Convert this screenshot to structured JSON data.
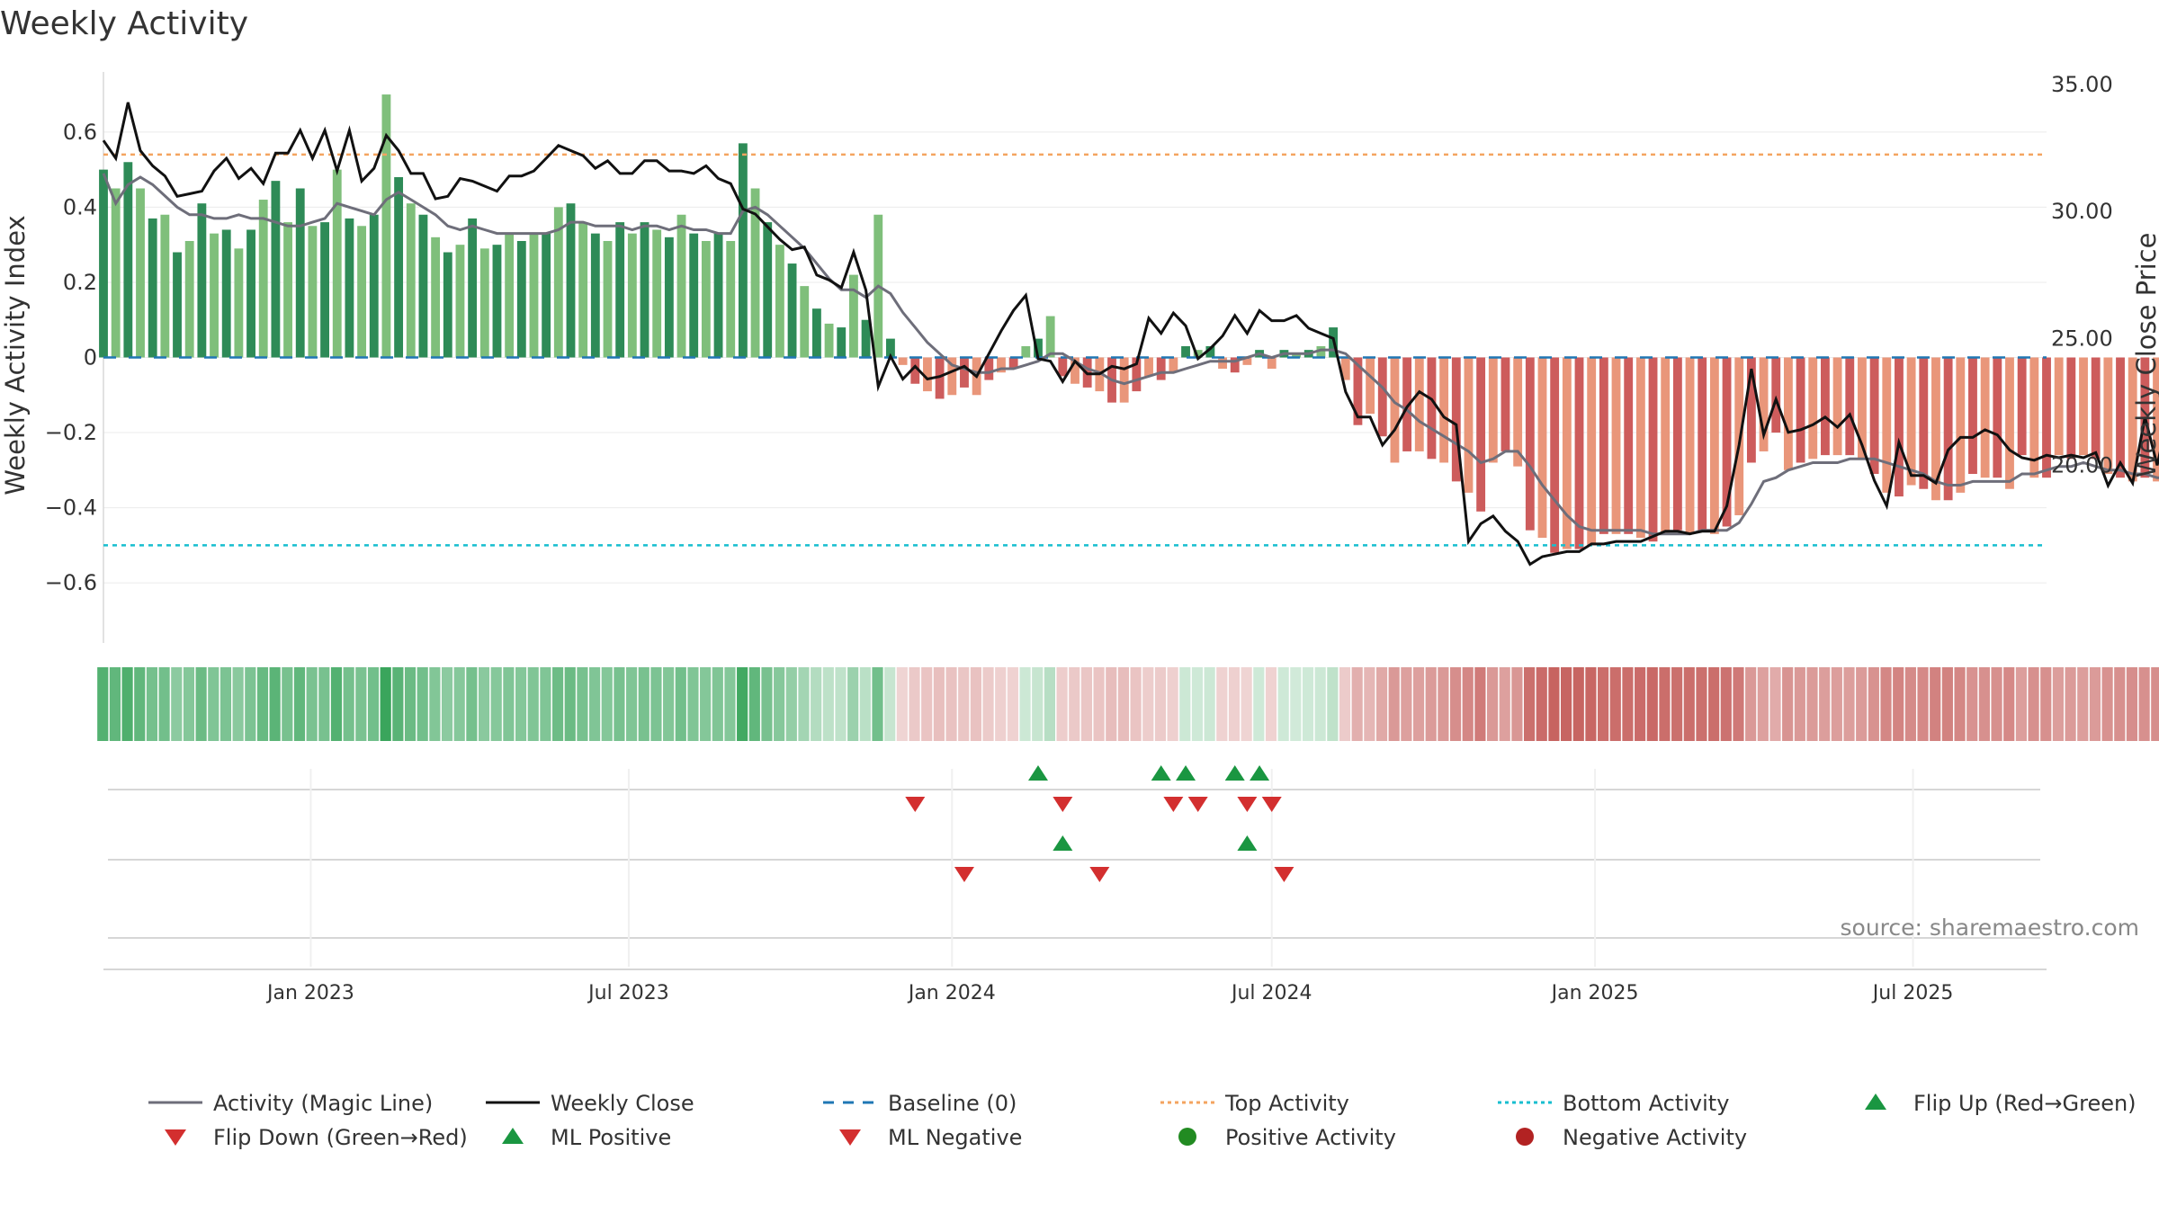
{
  "title": "Weekly Activity",
  "source_text": "source: sharemaestro.com",
  "colors": {
    "pos_dark": "#2e8b57",
    "pos_light": "#7fbf7b",
    "neg_dark": "#cd5c5c",
    "neg_light": "#e9967a",
    "magic_line": "#6e6e7a",
    "close_line": "#111111",
    "baseline": "#1f77b4",
    "top_line": "#f4a460",
    "bottom_line": "#17becf",
    "flip_up": "#1a9641",
    "flip_down": "#d32f2f",
    "pos_dot": "#228b22",
    "neg_dot": "#b22222"
  },
  "legend": [
    {
      "label": "Activity (Magic Line)",
      "kind": "line",
      "color": "#6e6e7a"
    },
    {
      "label": "Weekly Close",
      "kind": "line",
      "color": "#111111"
    },
    {
      "label": "Baseline (0)",
      "kind": "dashed",
      "color": "#1f77b4"
    },
    {
      "label": "Top Activity",
      "kind": "dotted",
      "color": "#f4a460"
    },
    {
      "label": "Bottom Activity",
      "kind": "dotted",
      "color": "#17becf"
    },
    {
      "label": "Flip Up (Red→Green)",
      "kind": "up",
      "color": "#1a9641"
    },
    {
      "label": "Flip Down (Green→Red)",
      "kind": "down",
      "color": "#d32f2f"
    },
    {
      "label": "ML Positive",
      "kind": "up",
      "color": "#1a9641"
    },
    {
      "label": "ML Negative",
      "kind": "down",
      "color": "#d32f2f"
    },
    {
      "label": "Positive Activity",
      "kind": "dot",
      "color": "#228b22"
    },
    {
      "label": "Negative Activity",
      "kind": "dot",
      "color": "#b22222"
    }
  ],
  "chart_data": {
    "type": "bar",
    "title": "Weekly Activity",
    "ylabel_left": "Weekly Activity Index",
    "ylabel_right": "Weekly Close Price",
    "x_range": [
      "2022-09-05",
      "2025-09-15"
    ],
    "ylim_left": [
      -0.76,
      0.76
    ],
    "ylim_right": [
      13.0,
      35.5
    ],
    "yticks_left": [
      {
        "v": 0.6,
        "label": "0.6"
      },
      {
        "v": 0.4,
        "label": "0.4"
      },
      {
        "v": 0.2,
        "label": "0.2"
      },
      {
        "v": 0,
        "label": "0"
      },
      {
        "v": -0.2,
        "label": "−0.2"
      },
      {
        "v": -0.4,
        "label": "−0.4"
      },
      {
        "v": -0.6,
        "label": "−0.6"
      }
    ],
    "yticks_right": [
      {
        "v": 35,
        "label": "35.00"
      },
      {
        "v": 30,
        "label": "30.00"
      },
      {
        "v": 25,
        "label": "25.00"
      },
      {
        "v": 20,
        "label": "20.00"
      }
    ],
    "xticks": [
      {
        "date": "2023-01-01",
        "label": "Jan 2023"
      },
      {
        "date": "2023-07-01",
        "label": "Jul 2023"
      },
      {
        "date": "2024-01-01",
        "label": "Jan 2024"
      },
      {
        "date": "2024-07-01",
        "label": "Jul 2024"
      },
      {
        "date": "2025-01-01",
        "label": "Jan 2025"
      },
      {
        "date": "2025-07-01",
        "label": "Jul 2025"
      }
    ],
    "top_activity": 0.54,
    "bottom_activity": -0.5,
    "baseline": 0,
    "start_date": "2022-09-05",
    "week_step_days": 7,
    "activity": [
      0.5,
      0.45,
      0.52,
      0.45,
      0.37,
      0.38,
      0.28,
      0.31,
      0.41,
      0.33,
      0.34,
      0.29,
      0.34,
      0.42,
      0.47,
      0.36,
      0.45,
      0.35,
      0.36,
      0.5,
      0.37,
      0.35,
      0.38,
      0.7,
      0.48,
      0.41,
      0.38,
      0.32,
      0.28,
      0.3,
      0.37,
      0.29,
      0.3,
      0.33,
      0.31,
      0.33,
      0.33,
      0.4,
      0.41,
      0.36,
      0.33,
      0.31,
      0.36,
      0.33,
      0.36,
      0.34,
      0.32,
      0.38,
      0.33,
      0.31,
      0.33,
      0.31,
      0.57,
      0.45,
      0.36,
      0.3,
      0.25,
      0.19,
      0.13,
      0.09,
      0.08,
      0.22,
      0.1,
      0.38,
      0.05,
      -0.02,
      -0.07,
      -0.09,
      -0.11,
      -0.1,
      -0.08,
      -0.1,
      -0.06,
      -0.04,
      -0.03,
      0.03,
      0.05,
      0.11,
      -0.05,
      -0.07,
      -0.08,
      -0.09,
      -0.12,
      -0.12,
      -0.09,
      -0.05,
      -0.06,
      -0.04,
      0.03,
      0.02,
      0.03,
      -0.03,
      -0.04,
      -0.02,
      0.02,
      -0.03,
      0.02,
      0.01,
      0.02,
      0.03,
      0.08,
      -0.06,
      -0.18,
      -0.15,
      -0.21,
      -0.28,
      -0.25,
      -0.25,
      -0.27,
      -0.28,
      -0.33,
      -0.36,
      -0.41,
      -0.28,
      -0.25,
      -0.29,
      -0.46,
      -0.48,
      -0.52,
      -0.51,
      -0.51,
      -0.5,
      -0.47,
      -0.47,
      -0.47,
      -0.48,
      -0.49,
      -0.47,
      -0.46,
      -0.47,
      -0.46,
      -0.47,
      -0.45,
      -0.42,
      -0.28,
      -0.25,
      -0.2,
      -0.3,
      -0.28,
      -0.27,
      -0.26,
      -0.26,
      -0.26,
      -0.27,
      -0.31,
      -0.36,
      -0.37,
      -0.34,
      -0.35,
      -0.38,
      -0.38,
      -0.36,
      -0.31,
      -0.32,
      -0.32,
      -0.35,
      -0.26,
      -0.32,
      -0.32,
      -0.26,
      -0.27,
      -0.26,
      -0.27,
      -0.31,
      -0.32,
      -0.33,
      -0.32,
      -0.33,
      -0.33,
      -0.34,
      -0.32,
      -0.37,
      -0.33,
      -0.35,
      -0.3,
      -0.32,
      -0.22
    ],
    "magic_line": [
      0.49,
      0.41,
      0.46,
      0.48,
      0.46,
      0.43,
      0.4,
      0.38,
      0.38,
      0.37,
      0.37,
      0.38,
      0.37,
      0.37,
      0.36,
      0.35,
      0.35,
      0.36,
      0.37,
      0.41,
      0.4,
      0.39,
      0.38,
      0.42,
      0.44,
      0.42,
      0.4,
      0.38,
      0.35,
      0.34,
      0.35,
      0.34,
      0.33,
      0.33,
      0.33,
      0.33,
      0.33,
      0.34,
      0.36,
      0.36,
      0.35,
      0.35,
      0.35,
      0.34,
      0.35,
      0.35,
      0.34,
      0.35,
      0.34,
      0.34,
      0.33,
      0.33,
      0.39,
      0.4,
      0.38,
      0.35,
      0.32,
      0.29,
      0.25,
      0.21,
      0.18,
      0.18,
      0.16,
      0.19,
      0.17,
      0.12,
      0.08,
      0.04,
      0.01,
      -0.02,
      -0.03,
      -0.04,
      -0.04,
      -0.03,
      -0.03,
      -0.02,
      -0.01,
      0.01,
      0.01,
      -0.01,
      -0.03,
      -0.04,
      -0.06,
      -0.07,
      -0.06,
      -0.05,
      -0.04,
      -0.04,
      -0.03,
      -0.02,
      -0.01,
      -0.01,
      -0.01,
      0,
      0.01,
      0,
      0.01,
      0.01,
      0.01,
      0.02,
      0.02,
      0.01,
      -0.02,
      -0.05,
      -0.08,
      -0.12,
      -0.14,
      -0.17,
      -0.19,
      -0.21,
      -0.23,
      -0.25,
      -0.28,
      -0.27,
      -0.25,
      -0.25,
      -0.29,
      -0.34,
      -0.38,
      -0.42,
      -0.45,
      -0.46,
      -0.46,
      -0.46,
      -0.46,
      -0.46,
      -0.47,
      -0.47,
      -0.47,
      -0.47,
      -0.46,
      -0.46,
      -0.46,
      -0.44,
      -0.39,
      -0.33,
      -0.32,
      -0.3,
      -0.29,
      -0.28,
      -0.28,
      -0.28,
      -0.27,
      -0.27,
      -0.27,
      -0.28,
      -0.29,
      -0.3,
      -0.31,
      -0.33,
      -0.34,
      -0.34,
      -0.33,
      -0.33,
      -0.33,
      -0.33,
      -0.31,
      -0.31,
      -0.3,
      -0.29,
      -0.29,
      -0.28,
      -0.29,
      -0.3,
      -0.3,
      -0.31,
      -0.31,
      -0.32,
      -0.32,
      -0.33,
      -0.33,
      -0.33,
      -0.32,
      -0.33,
      -0.32,
      -0.31,
      -0.29
    ],
    "weekly_close": [
      32.8,
      32.1,
      34.3,
      32.4,
      31.8,
      31.4,
      30.6,
      30.7,
      30.8,
      31.6,
      32.1,
      31.3,
      31.7,
      31.1,
      32.3,
      32.3,
      33.2,
      32.1,
      33.2,
      31.6,
      33.2,
      31.2,
      31.7,
      33.0,
      32.4,
      31.5,
      31.5,
      30.5,
      30.6,
      31.3,
      31.2,
      31.0,
      30.8,
      31.4,
      31.4,
      31.6,
      32.1,
      32.6,
      32.4,
      32.2,
      31.7,
      32.0,
      31.5,
      31.5,
      32.0,
      32.0,
      31.6,
      31.6,
      31.5,
      31.8,
      31.3,
      31.1,
      30.1,
      29.9,
      29.4,
      28.9,
      28.5,
      28.6,
      27.5,
      27.3,
      27.0,
      28.4,
      26.9,
      23.1,
      24.3,
      23.4,
      23.9,
      23.4,
      23.5,
      23.7,
      23.9,
      23.5,
      24.4,
      25.3,
      26.1,
      26.7,
      24.2,
      24.1,
      23.3,
      24.1,
      23.6,
      23.6,
      23.9,
      23.8,
      24.0,
      25.8,
      25.2,
      26.0,
      25.5,
      24.2,
      24.6,
      25.1,
      25.9,
      25.2,
      26.1,
      25.7,
      25.7,
      25.9,
      25.4,
      25.2,
      25.0,
      22.9,
      21.9,
      21.9,
      20.8,
      21.4,
      22.3,
      22.9,
      22.6,
      21.9,
      21.6,
      17.0,
      17.7,
      18.0,
      17.4,
      17.0,
      16.1,
      16.4,
      16.5,
      16.6,
      16.6,
      16.9,
      16.9,
      17.0,
      17.0,
      17.0,
      17.2,
      17.4,
      17.4,
      17.3,
      17.4,
      17.4,
      18.4,
      20.8,
      23.8,
      21.2,
      22.6,
      21.3,
      21.4,
      21.6,
      21.9,
      21.5,
      22.0,
      20.8,
      19.4,
      18.4,
      20.9,
      19.6,
      19.6,
      19.3,
      20.6,
      21.1,
      21.1,
      21.4,
      21.2,
      20.6,
      20.3,
      20.2,
      20.4,
      20.3,
      20.4,
      20.3,
      20.5,
      19.2,
      20.1,
      19.3,
      21.9,
      20.0,
      22.2
    ],
    "heat_strip": "one cell per week; green where activity > 0, red where activity < 0; opacity scales with magnitude",
    "signal_rows": [
      {
        "name": "Flip Up / Flip Down",
        "up_dates": [
          "2024-02-19",
          "2024-04-29",
          "2024-05-13",
          "2024-06-10",
          "2024-06-24"
        ],
        "down_dates": [
          "2023-12-11",
          "2024-03-04",
          "2024-05-06",
          "2024-05-20",
          "2024-06-17",
          "2024-07-01"
        ]
      },
      {
        "name": "ML Positive / ML Negative",
        "up_dates": [
          "2024-03-04",
          "2024-06-17"
        ],
        "down_dates": [
          "2024-01-08",
          "2024-03-25",
          "2024-07-08"
        ]
      },
      {
        "name": "Positive / Negative Activity",
        "up_dates": [],
        "down_dates": []
      }
    ]
  }
}
